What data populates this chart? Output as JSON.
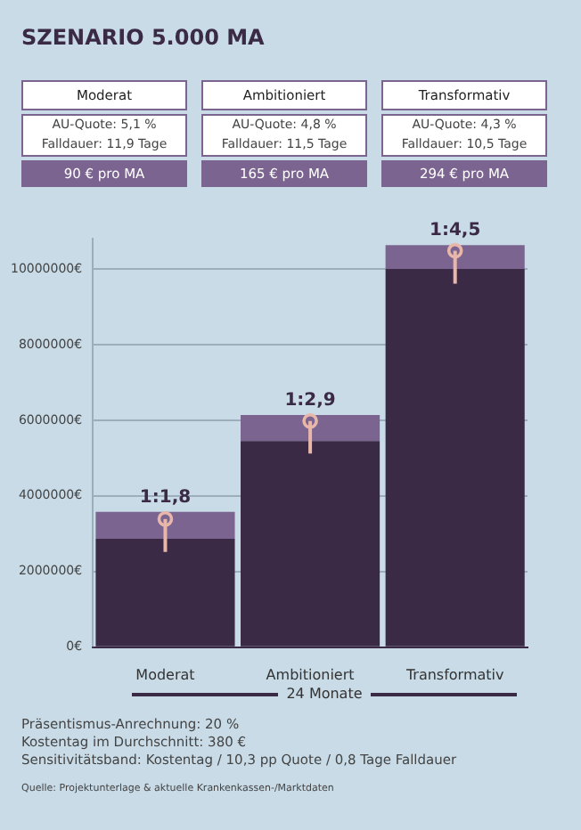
{
  "chart_data": [
    {
      "type": "other",
      "title": "SZENARIO 5.000 MA",
      "categories": [
        "Moderat",
        "Ambitioniert",
        "Transformativ"
      ],
      "color": "#7b648f",
      "annotations": [
        "AU-Quote: 5,1 %",
        "Falldauer: 11,9 Tage",
        "90 € pro MA",
        "AU-Quote: 4,8 %",
        "Falldauer: 11,5 Tage",
        "165 € pro MA",
        "AU-Quote: 4,3 %",
        "Falldauer: 10,5 Tage",
        "294 € pro MA"
      ]
    },
    {
      "type": "bar",
      "stacked": true,
      "categories": [
        "Moderat",
        "Ambitioniert",
        "Transformativ"
      ],
      "xlabel": "24 Monate",
      "series": [
        {
          "color": "#3a2a45",
          "values": [
            2870000,
            5450000,
            10000000
          ]
        },
        {
          "color": "#7b648f",
          "values": [
            710000,
            690000,
            630000
          ]
        },
        {
          "type": "scatter",
          "marker": "circle",
          "color": "#e9b7aa",
          "x": [
            "Moderat",
            "Ambitioniert",
            "Transformativ"
          ],
          "values": [
            3390000,
            5980000,
            10480000
          ],
          "errors": [
            [
              2520000,
              3390000
            ],
            [
              5120000,
              5980000
            ],
            [
              9610000,
              10480000
            ]
          ]
        }
      ],
      "ylim": [
        0,
        10800000
      ],
      "yticks": [
        {
          "value": 0,
          "label": "0€"
        },
        {
          "value": 2000000,
          "label": "2000000€"
        },
        {
          "value": 4000000,
          "label": "4000000€"
        },
        {
          "value": 6000000,
          "label": "6000000€"
        },
        {
          "value": 8000000,
          "label": "8000000€"
        },
        {
          "value": 10000000,
          "label": "10000000€"
        }
      ],
      "grid": "y",
      "legend": false,
      "annotations": [
        {
          "text": "1:1,8",
          "x": "Moderat",
          "y": 3580000
        },
        {
          "text": "1:2,9",
          "x": "Ambitioniert",
          "y": 6140000
        },
        {
          "text": "1:4,5",
          "x": "Transformativ",
          "y": 10630000
        },
        "Präsentismus-Anrechnung: 20 %",
        "Kostentag im Durchschnitt: 380 €",
        "Sensitivitätsband: Kostentag / 10,3 pp Quote / 0,8 Tage Falldauer",
        "Quelle: Projektunterlage & aktuelle Krankenkassen-/Marktdaten"
      ]
    }
  ]
}
